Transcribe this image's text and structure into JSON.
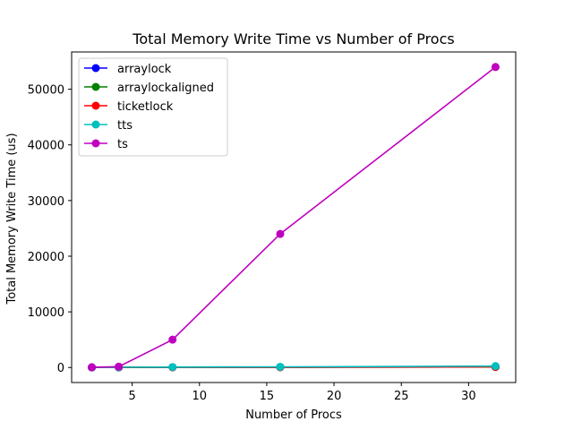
{
  "chart_data": {
    "type": "line",
    "title": "Total Memory Write Time vs Number of Procs",
    "xlabel": "Number of Procs",
    "ylabel": "Total Memory Write Time (us)",
    "xlim": [
      0.5,
      33.5
    ],
    "ylim": [
      -2700,
      56700
    ],
    "xticks": [
      5,
      10,
      15,
      20,
      25,
      30
    ],
    "yticks": [
      0,
      10000,
      20000,
      30000,
      40000,
      50000
    ],
    "grid": false,
    "legend_position": "top-left",
    "x": [
      2,
      4,
      8,
      16,
      32
    ],
    "series": [
      {
        "name": "arraylock",
        "color": "#0000ff",
        "values": [
          10,
          20,
          40,
          60,
          100
        ]
      },
      {
        "name": "arraylockaligned",
        "color": "#008000",
        "values": [
          10,
          20,
          40,
          60,
          100
        ]
      },
      {
        "name": "ticketlock",
        "color": "#ff0000",
        "values": [
          10,
          20,
          40,
          60,
          100
        ]
      },
      {
        "name": "tts",
        "color": "#00bfbf",
        "values": [
          20,
          40,
          80,
          120,
          250
        ]
      },
      {
        "name": "ts",
        "color": "#bf00bf",
        "values": [
          50,
          150,
          5000,
          24000,
          54000
        ]
      }
    ]
  }
}
